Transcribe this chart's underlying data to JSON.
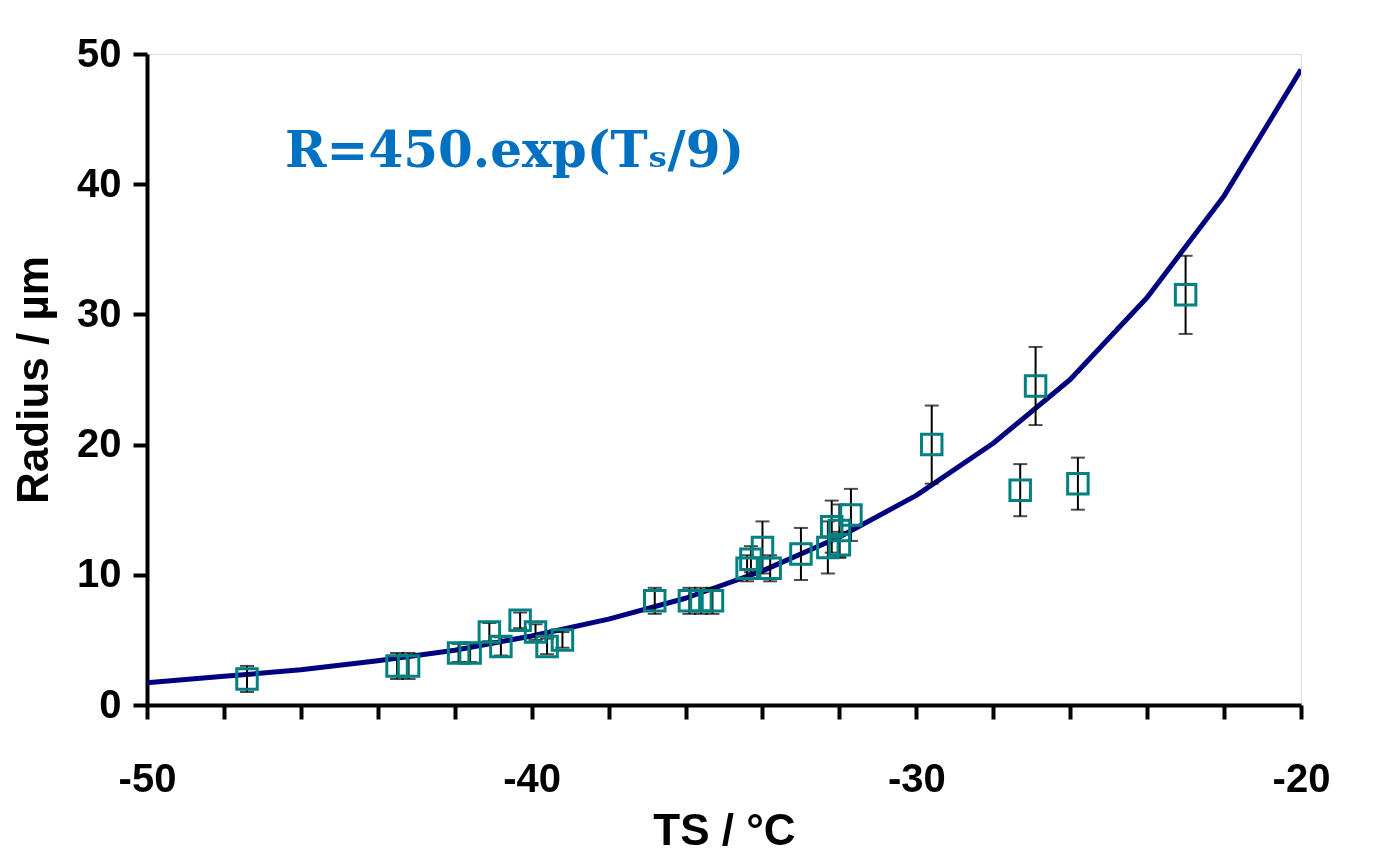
{
  "chart_data": {
    "type": "scatter",
    "xlabel": "TS / °C",
    "ylabel": "Radius / µm",
    "annotations": [
      "R=450.exp(Tₛ/9)"
    ],
    "xlim": [
      -50,
      -20
    ],
    "ylim": [
      0,
      50
    ],
    "xticks": [
      -50,
      {
        "value": -48,
        "label": null
      },
      {
        "value": -46,
        "label": null
      },
      {
        "value": -44,
        "label": null
      },
      {
        "value": -42,
        "label": null
      },
      -40,
      {
        "value": -38,
        "label": null
      },
      {
        "value": -36,
        "label": null
      },
      {
        "value": -34,
        "label": null
      },
      {
        "value": -32,
        "label": null
      },
      -30,
      {
        "value": -28,
        "label": null
      },
      {
        "value": -26,
        "label": null
      },
      {
        "value": -24,
        "label": null
      },
      {
        "value": -22,
        "label": null
      },
      -20
    ],
    "yticks": [
      0,
      10,
      20,
      30,
      40,
      50
    ],
    "grid": false,
    "series": [
      {
        "type": "line",
        "color": "#000080",
        "marker": "none",
        "line_style": "solid",
        "x": [
          -50,
          -48,
          -46,
          -44,
          -42,
          -40,
          -38,
          -36,
          -34,
          -32,
          -30,
          -28,
          -26,
          -24,
          -22,
          -20
        ],
        "values": [
          1.7,
          2.2,
          2.7,
          3.4,
          4.2,
          5.3,
          6.6,
          8.2,
          10.3,
          12.9,
          16.1,
          20.1,
          25.0,
          31.3,
          39.1,
          48.8
        ]
      },
      {
        "color": "#008080",
        "marker": "square",
        "x": [
          -47.4,
          -43.5,
          -43.2,
          -41.9,
          -41.6,
          -41.1,
          -40.8,
          -40.3,
          -39.9,
          -39.6,
          -39.2,
          -36.8,
          -35.9,
          -35.6,
          -35.3,
          -34.4,
          -34.3,
          -34.0,
          -33.8,
          -33.0,
          -32.3,
          -32.2,
          -32.0,
          -32.0,
          -31.7,
          -29.6,
          -27.3,
          -26.9,
          -25.8,
          -23.0
        ],
        "values": [
          2.0,
          3.0,
          3.0,
          4.0,
          4.0,
          5.6,
          4.5,
          6.5,
          5.6,
          4.5,
          5.0,
          8.0,
          8.0,
          8.0,
          8.0,
          10.5,
          11.2,
          12.1,
          10.5,
          11.6,
          12.1,
          13.7,
          12.3,
          13.4,
          14.6,
          20.0,
          16.5,
          24.5,
          17.0,
          31.5
        ],
        "errors": [
          1,
          1,
          1,
          0.7,
          0.7,
          0.7,
          0.7,
          0.6,
          0.6,
          0.6,
          0.6,
          1,
          1,
          1,
          1,
          1,
          1,
          2,
          1,
          2,
          2,
          2,
          1,
          2,
          2,
          3,
          2,
          3,
          2,
          3
        ]
      }
    ]
  }
}
